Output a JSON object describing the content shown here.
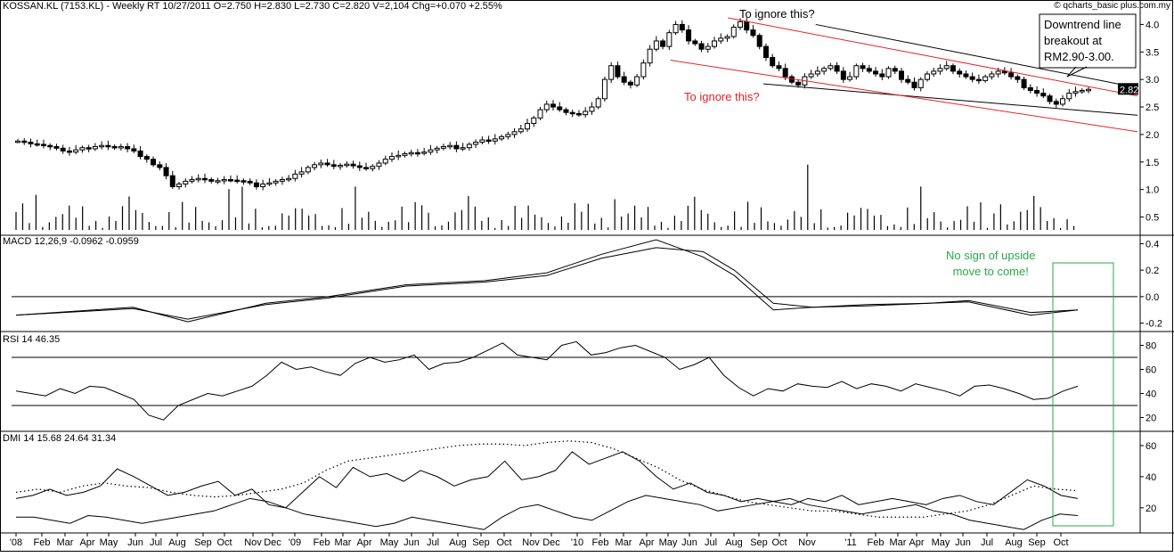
{
  "header": {
    "main": "KOSSAN.KL (7153.KL) - Weekly RT  10/27/2011   O=2.750   H=2.830   L=2.730   C=2.820   V=2,104   Chg=+0.070   +2.55%",
    "source": "© qcharts_basic plus.com.my",
    "macd": "MACD 12,26,9  -0.0962  -0.0959",
    "rsi": "RSI 14  46.35",
    "dmi": "DMI 14  15.68  24.64  31.34"
  },
  "annotations": {
    "ignore_top": "To ignore this?",
    "ignore_bottom": "To ignore this?",
    "breakout": "Downtrend line\nbreakout at\nRM2.90-3.00.",
    "macd_note": "No sign of upside\nmove to come!"
  },
  "colors": {
    "trend_red": "#e8202a",
    "note_green": "#2aa84a",
    "ink": "#000000"
  },
  "chart_data": [
    {
      "type": "candlestick",
      "last_price_label": "2.82",
      "ylim": [
        0.2,
        4.25
      ],
      "y_ticks": [
        0.5,
        1.0,
        1.5,
        2.0,
        2.5,
        3.0,
        3.5,
        4.0
      ],
      "y_tick_labels": [
        "0.5",
        "1.0",
        "1.5",
        "2.0",
        "2.5",
        "3.0",
        "3.5",
        "4.0"
      ],
      "x_labels": [
        "'08",
        "Feb",
        "Mar",
        "Apr",
        "May",
        "Jun",
        "Jul",
        "Aug",
        "Sep",
        "Oct",
        "Nov",
        "Dec",
        "'09",
        "Feb",
        "Mar",
        "Apr",
        "May",
        "Jun",
        "Jul",
        "Aug",
        "Sep",
        "Oct",
        "Nov",
        "Dec",
        "'10",
        "Feb",
        "Mar",
        "Apr",
        "May",
        "Jun",
        "Jul",
        "Aug",
        "Sep",
        "Oct",
        "Nov",
        "'11",
        "Feb",
        "Mar",
        "Apr",
        "May",
        "Jun",
        "Jul",
        "Aug",
        "Sep",
        "Oct"
      ],
      "close": [
        1.88,
        1.86,
        1.83,
        1.82,
        1.8,
        1.78,
        1.75,
        1.7,
        1.68,
        1.72,
        1.76,
        1.74,
        1.78,
        1.8,
        1.78,
        1.76,
        1.78,
        1.74,
        1.7,
        1.6,
        1.55,
        1.45,
        1.4,
        1.25,
        1.05,
        1.1,
        1.15,
        1.18,
        1.2,
        1.18,
        1.15,
        1.16,
        1.18,
        1.17,
        1.16,
        1.15,
        1.12,
        1.05,
        1.1,
        1.12,
        1.15,
        1.18,
        1.2,
        1.28,
        1.32,
        1.4,
        1.45,
        1.48,
        1.45,
        1.42,
        1.44,
        1.46,
        1.43,
        1.4,
        1.38,
        1.42,
        1.48,
        1.55,
        1.6,
        1.62,
        1.65,
        1.67,
        1.66,
        1.68,
        1.72,
        1.75,
        1.78,
        1.8,
        1.74,
        1.76,
        1.82,
        1.86,
        1.9,
        1.88,
        1.92,
        1.96,
        2.0,
        2.05,
        2.1,
        2.2,
        2.3,
        2.45,
        2.55,
        2.5,
        2.45,
        2.4,
        2.38,
        2.36,
        2.42,
        2.5,
        2.65,
        3.0,
        3.25,
        3.05,
        2.95,
        2.9,
        3.05,
        3.3,
        3.55,
        3.7,
        3.6,
        3.85,
        4.0,
        3.9,
        3.7,
        3.65,
        3.55,
        3.6,
        3.7,
        3.75,
        3.78,
        3.95,
        4.05,
        3.9,
        3.8,
        3.6,
        3.4,
        3.25,
        3.2,
        3.05,
        2.95,
        2.9,
        3.05,
        3.1,
        3.15,
        3.2,
        3.25,
        3.15,
        3.0,
        3.05,
        3.25,
        3.2,
        3.15,
        3.1,
        3.05,
        3.2,
        3.15,
        3.0,
        2.95,
        2.85,
        3.0,
        3.1,
        3.15,
        3.2,
        3.25,
        3.15,
        3.1,
        3.05,
        3.0,
        2.98,
        3.05,
        3.1,
        3.15,
        3.12,
        3.05,
        3.0,
        2.85,
        2.8,
        2.75,
        2.7,
        2.6,
        2.55,
        2.65,
        2.75,
        2.78,
        2.8,
        2.82
      ],
      "volume_bars": 160,
      "channel": [
        {
          "name": "black-upper",
          "from": [
            0.7142,
            4.0
          ],
          "to": [
            1.0,
            2.85
          ]
        },
        {
          "name": "black-lower",
          "from": [
            0.6678,
            2.92
          ],
          "to": [
            1.0,
            2.35
          ]
        },
        {
          "name": "red-upper",
          "from": [
            0.6363,
            4.12
          ],
          "to": [
            1.0,
            2.7
          ]
        },
        {
          "name": "red-lower",
          "from": [
            0.5852,
            3.35
          ],
          "to": [
            1.0,
            2.05
          ]
        }
      ]
    },
    {
      "type": "line",
      "name": "MACD",
      "ylim": [
        -0.25,
        0.45
      ],
      "y_ticks": [
        -0.2,
        0.0,
        0.2,
        0.4
      ],
      "y_tick_labels": [
        "-0.2",
        "0.0",
        "0.2",
        "0.4"
      ],
      "zero_line": 0.0,
      "series": [
        {
          "points": [
            [
              0.0,
              -0.14
            ],
            [
              0.15,
              -0.08
            ],
            [
              0.22,
              -0.19
            ],
            [
              0.32,
              -0.05
            ],
            [
              0.4,
              0.0
            ],
            [
              0.5,
              0.09
            ],
            [
              0.6,
              0.12
            ],
            [
              0.68,
              0.18
            ],
            [
              0.75,
              0.32
            ],
            [
              0.82,
              0.43
            ],
            [
              0.88,
              0.3
            ],
            [
              0.92,
              0.16
            ],
            [
              0.97,
              -0.1
            ],
            [
              1.02,
              -0.08
            ],
            [
              1.09,
              -0.06
            ],
            [
              1.17,
              -0.05
            ],
            [
              1.22,
              -0.04
            ],
            [
              1.3,
              -0.14
            ],
            [
              1.36,
              -0.1
            ]
          ]
        },
        {
          "points": [
            [
              0.0,
              -0.14
            ],
            [
              0.15,
              -0.09
            ],
            [
              0.22,
              -0.17
            ],
            [
              0.32,
              -0.06
            ],
            [
              0.4,
              -0.01
            ],
            [
              0.5,
              0.08
            ],
            [
              0.6,
              0.11
            ],
            [
              0.68,
              0.16
            ],
            [
              0.75,
              0.29
            ],
            [
              0.82,
              0.37
            ],
            [
              0.88,
              0.34
            ],
            [
              0.92,
              0.2
            ],
            [
              0.97,
              -0.05
            ],
            [
              1.02,
              -0.08
            ],
            [
              1.09,
              -0.07
            ],
            [
              1.17,
              -0.05
            ],
            [
              1.22,
              -0.03
            ],
            [
              1.3,
              -0.12
            ],
            [
              1.36,
              -0.1
            ]
          ]
        }
      ]
    },
    {
      "type": "line",
      "name": "RSI",
      "ylim": [
        10,
        90
      ],
      "y_ticks": [
        20,
        40,
        60,
        80
      ],
      "y_tick_labels": [
        "20",
        "40",
        "60",
        "80"
      ],
      "levels": [
        30,
        70
      ],
      "values": [
        42,
        40,
        38,
        44,
        40,
        46,
        45,
        40,
        35,
        22,
        18,
        30,
        35,
        40,
        38,
        42,
        46,
        55,
        66,
        60,
        62,
        58,
        55,
        65,
        70,
        66,
        68,
        72,
        60,
        65,
        66,
        70,
        76,
        82,
        72,
        70,
        68,
        80,
        83,
        72,
        74,
        78,
        80,
        75,
        70,
        60,
        64,
        70,
        55,
        45,
        38,
        44,
        42,
        48,
        46,
        45,
        50,
        44,
        48,
        46,
        42,
        48,
        45,
        42,
        38,
        46,
        47,
        44,
        40,
        35,
        36,
        42,
        46
      ]
    },
    {
      "type": "line",
      "name": "DMI",
      "ylim": [
        5,
        68
      ],
      "y_ticks": [
        20,
        40,
        60
      ],
      "y_tick_labels": [
        "20",
        "40",
        "60"
      ],
      "series": [
        {
          "style": "solid",
          "values": [
            26,
            28,
            32,
            28,
            30,
            34,
            45,
            40,
            34,
            28,
            30,
            34,
            37,
            28,
            32,
            22,
            20,
            30,
            40,
            33,
            46,
            40,
            42,
            37,
            44,
            40,
            34,
            38,
            40,
            50,
            38,
            40,
            44,
            56,
            48,
            52,
            56,
            50,
            40,
            32,
            36,
            30,
            28,
            24,
            26,
            24,
            22,
            26,
            24,
            28,
            22,
            24,
            26,
            24,
            22,
            26,
            28,
            24,
            22,
            30,
            38,
            34,
            28,
            26
          ]
        },
        {
          "style": "solid",
          "values": [
            14,
            14,
            12,
            10,
            15,
            14,
            12,
            10,
            12,
            14,
            16,
            18,
            22,
            26,
            24,
            20,
            16,
            14,
            12,
            10,
            8,
            10,
            14,
            12,
            10,
            8,
            6,
            14,
            20,
            22,
            18,
            14,
            12,
            18,
            24,
            28,
            26,
            24,
            22,
            18,
            20,
            22,
            24,
            26,
            22,
            20,
            18,
            16,
            18,
            20,
            22,
            18,
            16,
            12,
            10,
            8,
            6,
            12,
            16,
            15
          ]
        },
        {
          "style": "dotted",
          "values": [
            30,
            32,
            30,
            34,
            36,
            34,
            33,
            30,
            28,
            27,
            28,
            30,
            32,
            36,
            44,
            50,
            52,
            54,
            56,
            58,
            60,
            61,
            61,
            60,
            62,
            63,
            62,
            58,
            52,
            46,
            38,
            32,
            28,
            24,
            22,
            20,
            18,
            18,
            16,
            14,
            14,
            14,
            16,
            18,
            22,
            28,
            34,
            32,
            31
          ]
        }
      ]
    }
  ]
}
